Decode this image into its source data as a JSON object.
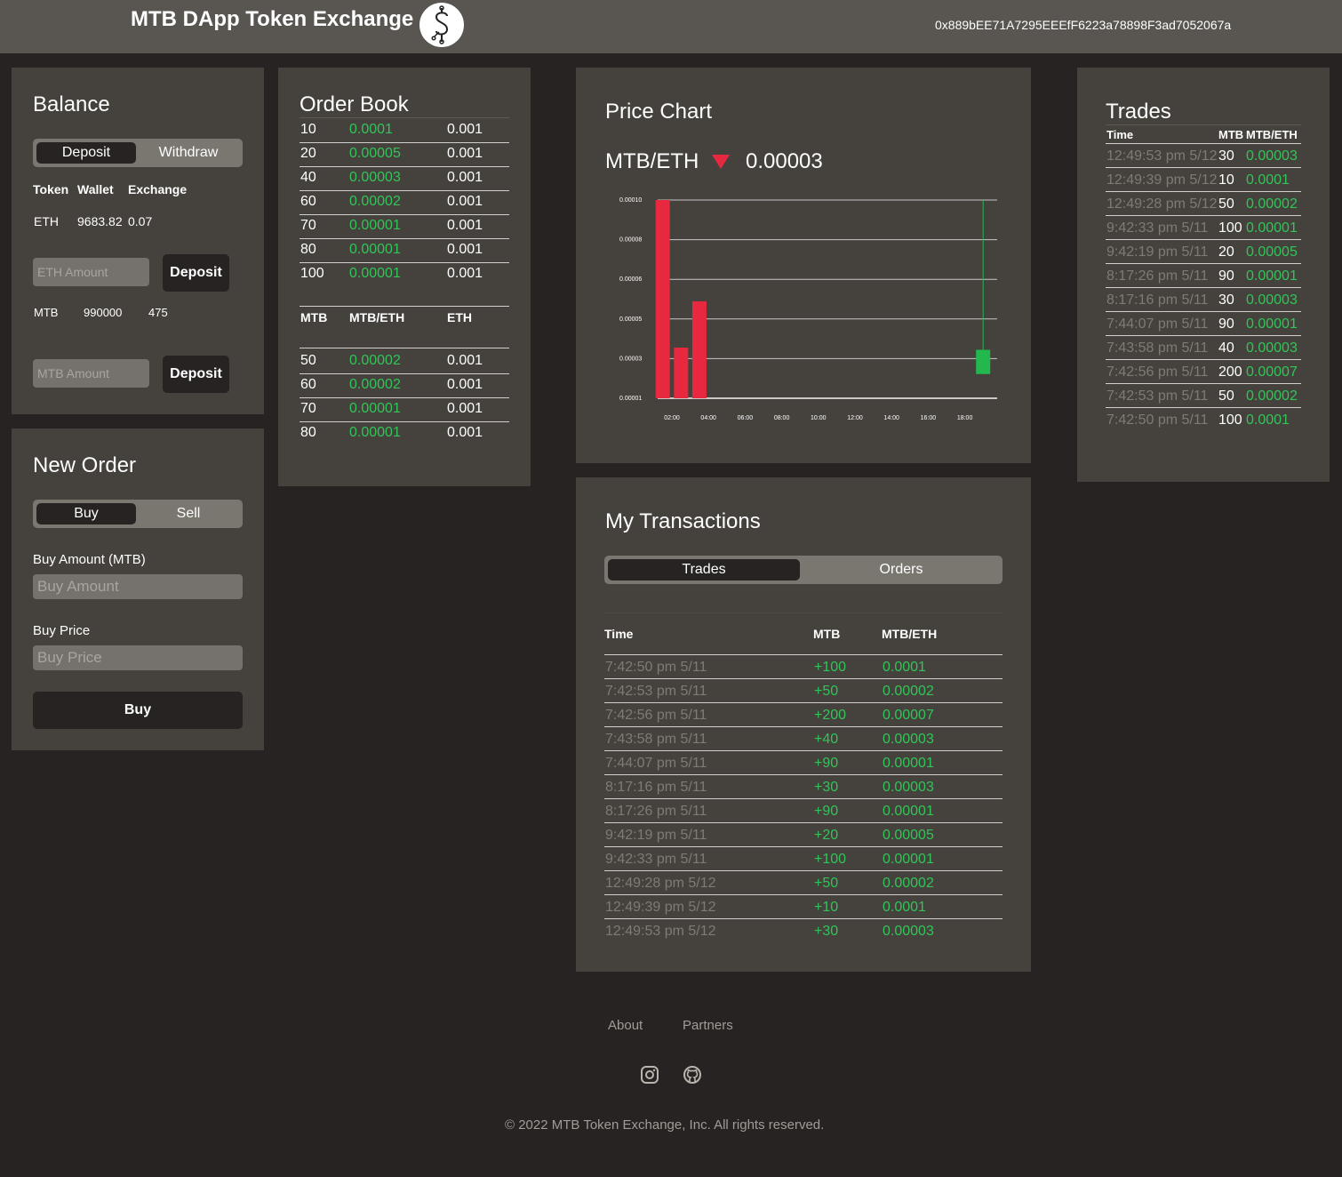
{
  "navbar": {
    "title": "MTB DApp Token Exchange",
    "account": "0x889bEE71A7295EEEfF6223a78898F3ad7052067a"
  },
  "balance": {
    "title": "Balance",
    "tabs": [
      "Deposit",
      "Withdraw"
    ],
    "headers": [
      "Token",
      "Wallet",
      "Exchange"
    ],
    "eth": {
      "token": "ETH",
      "wallet": "9683.82",
      "exchange": "0.07"
    },
    "eth_placeholder": "ETH Amount",
    "mtb": {
      "token": "MTB",
      "wallet": "990000",
      "exchange": "475"
    },
    "mtb_placeholder": "MTB Amount",
    "deposit_label": "Deposit"
  },
  "new_order": {
    "title": "New Order",
    "tabs": [
      "Buy",
      "Sell"
    ],
    "amount_label": "Buy Amount (MTB)",
    "amount_placeholder": "Buy Amount",
    "price_label": "Buy Price",
    "price_placeholder": "Buy Price",
    "submit_label": "Buy"
  },
  "order_book": {
    "title": "Order Book",
    "headers": [
      "MTB",
      "MTB/ETH",
      "ETH"
    ],
    "sell_orders": [
      {
        "mtb": "10",
        "price": "0.0001",
        "eth": "0.001"
      },
      {
        "mtb": "20",
        "price": "0.00005",
        "eth": "0.001"
      },
      {
        "mtb": "40",
        "price": "0.00003",
        "eth": "0.001"
      },
      {
        "mtb": "60",
        "price": "0.00002",
        "eth": "0.001"
      },
      {
        "mtb": "70",
        "price": "0.00001",
        "eth": "0.001"
      },
      {
        "mtb": "80",
        "price": "0.00001",
        "eth": "0.001"
      },
      {
        "mtb": "100",
        "price": "0.00001",
        "eth": "0.001"
      }
    ],
    "buy_orders": [
      {
        "mtb": "50",
        "price": "0.00002",
        "eth": "0.001"
      },
      {
        "mtb": "60",
        "price": "0.00002",
        "eth": "0.001"
      },
      {
        "mtb": "70",
        "price": "0.00001",
        "eth": "0.001"
      },
      {
        "mtb": "80",
        "price": "0.00001",
        "eth": "0.001"
      }
    ]
  },
  "price_chart": {
    "title": "Price Chart",
    "pair": "MTB/ETH",
    "last_price": "0.00003",
    "trend_icon": "down-triangle-icon",
    "down_color": "#e8283f",
    "up_color": "#22b84d"
  },
  "chart_data": {
    "type": "candlestick",
    "y_ticks": [
      "0.00010",
      "0.00008",
      "0.00006",
      "0.00005",
      "0.00003",
      "0.00001"
    ],
    "x_ticks": [
      "02:00",
      "04:00",
      "06:00",
      "08:00",
      "10:00",
      "12:00",
      "14:00",
      "16:00",
      "18:00"
    ],
    "ylim": [
      1e-05,
      0.0001
    ],
    "candles": [
      {
        "time": "01:30",
        "open": 0.0001,
        "close": 1e-05,
        "direction": "down"
      },
      {
        "time": "02:30",
        "open": 3.3e-05,
        "close": 1e-05,
        "direction": "down"
      },
      {
        "time": "03:30",
        "open": 5.4e-05,
        "close": 1e-05,
        "direction": "down"
      },
      {
        "time": "19:00",
        "open": 2.1e-05,
        "close": 3.2e-05,
        "high": 0.0001,
        "low": 2.1e-05,
        "direction": "up"
      }
    ],
    "grid": true
  },
  "trades": {
    "title": "Trades",
    "headers": [
      "Time",
      "MTB",
      "MTB/ETH"
    ],
    "rows": [
      {
        "time": "12:49:53 pm 5/12",
        "mtb": "30",
        "price": "0.00003"
      },
      {
        "time": "12:49:39 pm 5/12",
        "mtb": "10",
        "price": "0.0001"
      },
      {
        "time": "12:49:28 pm 5/12",
        "mtb": "50",
        "price": "0.00002"
      },
      {
        "time": "9:42:33 pm 5/11",
        "mtb": "100",
        "price": "0.00001"
      },
      {
        "time": "9:42:19 pm 5/11",
        "mtb": "20",
        "price": "0.00005"
      },
      {
        "time": "8:17:26 pm 5/11",
        "mtb": "90",
        "price": "0.00001"
      },
      {
        "time": "8:17:16 pm 5/11",
        "mtb": "30",
        "price": "0.00003"
      },
      {
        "time": "7:44:07 pm 5/11",
        "mtb": "90",
        "price": "0.00001"
      },
      {
        "time": "7:43:58 pm 5/11",
        "mtb": "40",
        "price": "0.00003"
      },
      {
        "time": "7:42:56 pm 5/11",
        "mtb": "200",
        "price": "0.00007"
      },
      {
        "time": "7:42:53 pm 5/11",
        "mtb": "50",
        "price": "0.00002"
      },
      {
        "time": "7:42:50 pm 5/11",
        "mtb": "100",
        "price": "0.0001"
      }
    ]
  },
  "my_transactions": {
    "title": "My Transactions",
    "tabs": [
      "Trades",
      "Orders"
    ],
    "headers": [
      "Time",
      "MTB",
      "MTB/ETH"
    ],
    "rows": [
      {
        "time": "7:42:50 pm 5/11",
        "mtb": "+100",
        "price": "0.0001"
      },
      {
        "time": "7:42:53 pm 5/11",
        "mtb": "+50",
        "price": "0.00002"
      },
      {
        "time": "7:42:56 pm 5/11",
        "mtb": "+200",
        "price": "0.00007"
      },
      {
        "time": "7:43:58 pm 5/11",
        "mtb": "+40",
        "price": "0.00003"
      },
      {
        "time": "7:44:07 pm 5/11",
        "mtb": "+90",
        "price": "0.00001"
      },
      {
        "time": "8:17:16 pm 5/11",
        "mtb": "+30",
        "price": "0.00003"
      },
      {
        "time": "8:17:26 pm 5/11",
        "mtb": "+90",
        "price": "0.00001"
      },
      {
        "time": "9:42:19 pm 5/11",
        "mtb": "+20",
        "price": "0.00005"
      },
      {
        "time": "9:42:33 pm 5/11",
        "mtb": "+100",
        "price": "0.00001"
      },
      {
        "time": "12:49:28 pm 5/12",
        "mtb": "+50",
        "price": "0.00002"
      },
      {
        "time": "12:49:39 pm 5/12",
        "mtb": "+10",
        "price": "0.0001"
      },
      {
        "time": "12:49:53 pm 5/12",
        "mtb": "+30",
        "price": "0.00003"
      }
    ]
  },
  "footer": {
    "links": [
      "About",
      "Partners"
    ],
    "icons": [
      "instagram-icon",
      "github-icon"
    ],
    "copyright": "© 2022 MTB Token Exchange, Inc. All rights reserved."
  }
}
